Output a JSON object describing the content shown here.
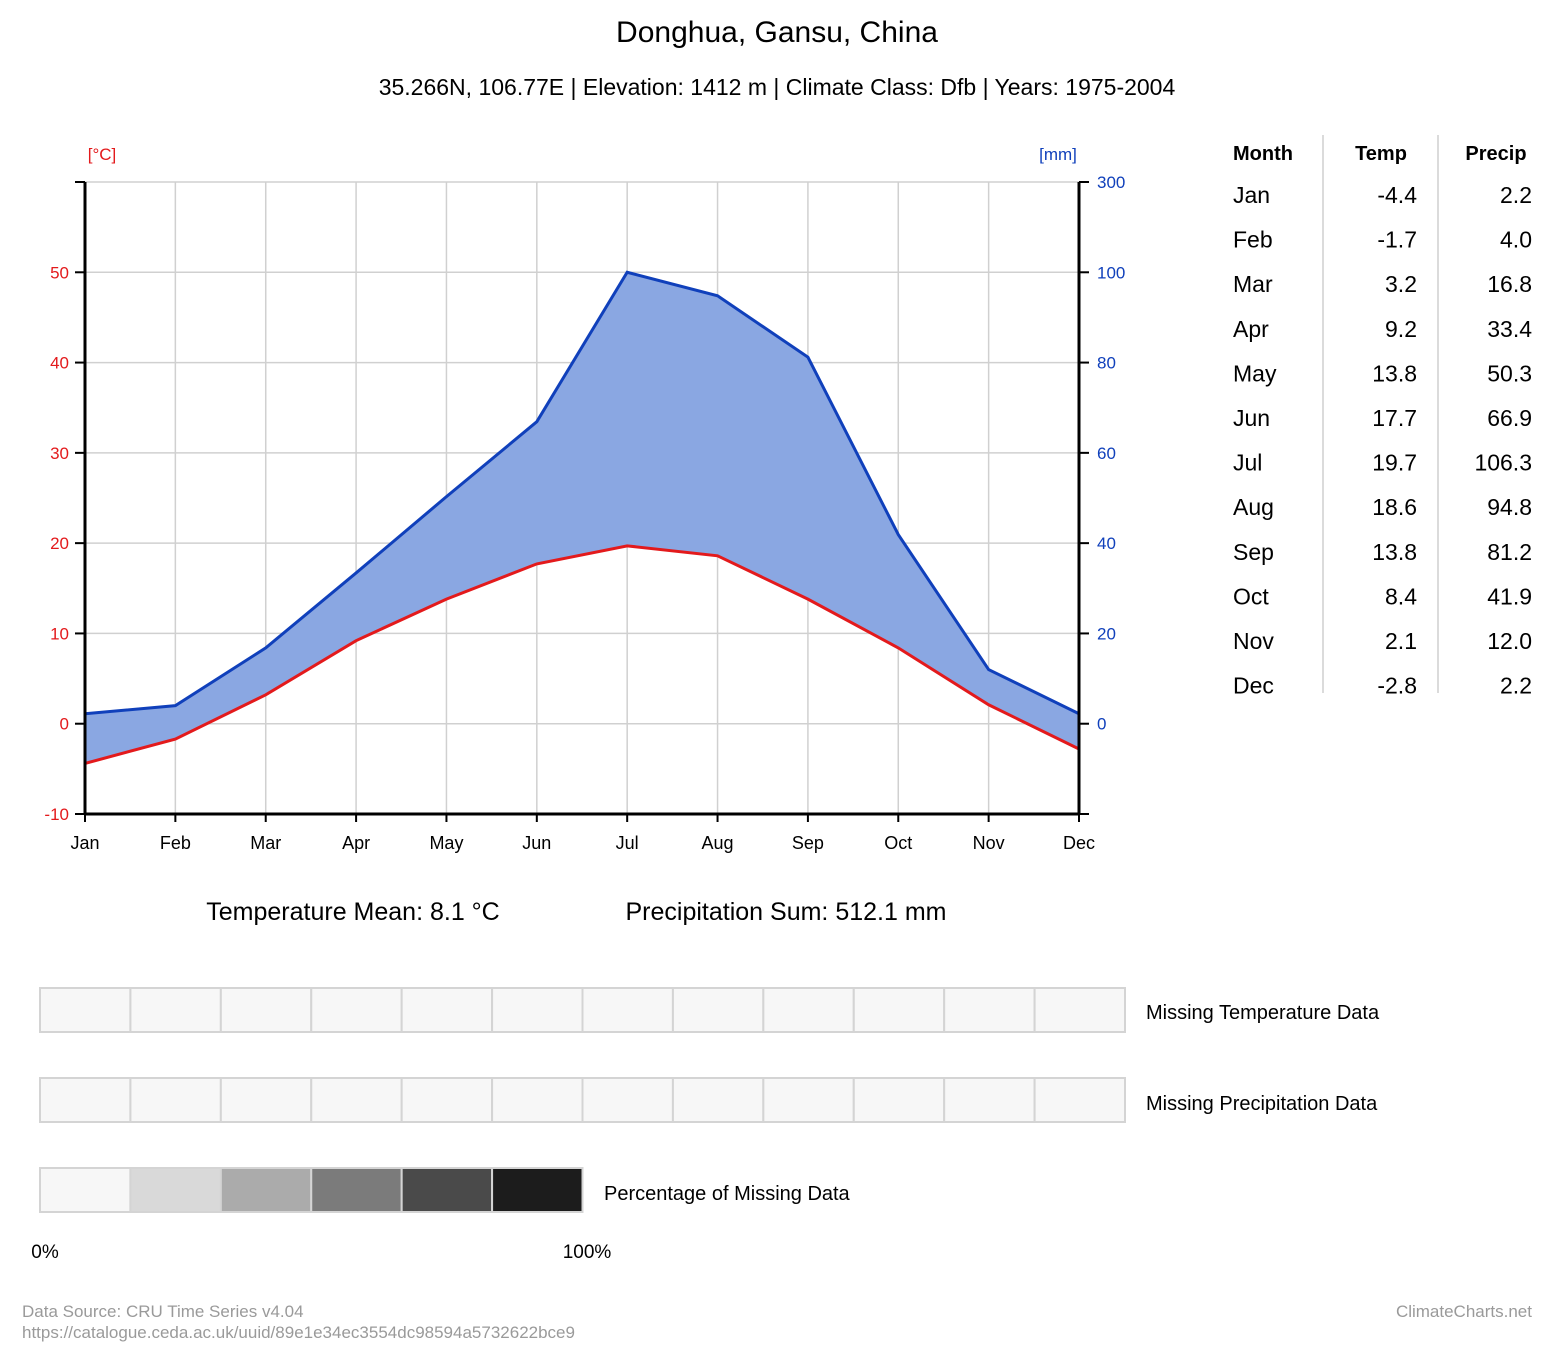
{
  "title": "Donghua, Gansu, China",
  "subtitle": "35.266N, 106.77E | Elevation: 1412 m | Climate Class: Dfb | Years: 1975-2004",
  "colors": {
    "temperature": "#e31a1c",
    "precipitation": "#1040bb",
    "precip_fill": "#8aa7e2",
    "grid": "#d0d0d0",
    "missing_scale": [
      "#f7f7f7",
      "#d9d9d9",
      "#ababab",
      "#7b7b7b",
      "#4a4a4a",
      "#1c1c1c"
    ]
  },
  "chart_data": {
    "type": "line",
    "categories": [
      "Jan",
      "Feb",
      "Mar",
      "Apr",
      "May",
      "Jun",
      "Jul",
      "Aug",
      "Sep",
      "Oct",
      "Nov",
      "Dec"
    ],
    "series": [
      {
        "name": "Temp",
        "axis": "left",
        "values": [
          -4.4,
          -1.7,
          3.2,
          9.2,
          13.8,
          17.7,
          19.7,
          18.6,
          13.8,
          8.4,
          2.1,
          -2.8
        ]
      },
      {
        "name": "Precip",
        "axis": "right",
        "values": [
          2.2,
          4.0,
          16.8,
          33.4,
          50.3,
          66.9,
          106.3,
          94.8,
          81.2,
          41.9,
          12.0,
          2.2
        ]
      }
    ],
    "left_axis": {
      "unit": "[°C]",
      "ticks": [
        -10,
        0,
        10,
        20,
        30,
        40,
        50
      ],
      "range": [
        -10,
        60
      ]
    },
    "right_axis": {
      "unit": "[mm]",
      "ticks": [
        0,
        20,
        40,
        60,
        80,
        100,
        300
      ],
      "range_linear": [
        -20,
        100
      ],
      "top_label_value": 300
    },
    "grid": true
  },
  "table": {
    "headers": [
      "Month",
      "Temp",
      "Precip"
    ],
    "rows": [
      [
        "Jan",
        "-4.4",
        "2.2"
      ],
      [
        "Feb",
        "-1.7",
        "4.0"
      ],
      [
        "Mar",
        "3.2",
        "16.8"
      ],
      [
        "Apr",
        "9.2",
        "33.4"
      ],
      [
        "May",
        "13.8",
        "50.3"
      ],
      [
        "Jun",
        "17.7",
        "66.9"
      ],
      [
        "Jul",
        "19.7",
        "106.3"
      ],
      [
        "Aug",
        "18.6",
        "94.8"
      ],
      [
        "Sep",
        "13.8",
        "81.2"
      ],
      [
        "Oct",
        "8.4",
        "41.9"
      ],
      [
        "Nov",
        "2.1",
        "12.0"
      ],
      [
        "Dec",
        "-2.8",
        "2.2"
      ]
    ]
  },
  "summary": {
    "temp_mean": "Temperature Mean: 8.1 °C",
    "precip_sum": "Precipitation Sum: 512.1 mm"
  },
  "missing": {
    "temp_label": "Missing Temperature Data",
    "precip_label": "Missing Precipitation Data",
    "percent_label": "Percentage of Missing Data",
    "min_label": "0%",
    "max_label": "100%"
  },
  "footer": {
    "source": "Data Source: CRU Time Series v4.04",
    "url": "https://catalogue.ceda.ac.uk/uuid/89e1e34ec3554dc98594a5732622bce9",
    "brand": "ClimateCharts.net"
  }
}
